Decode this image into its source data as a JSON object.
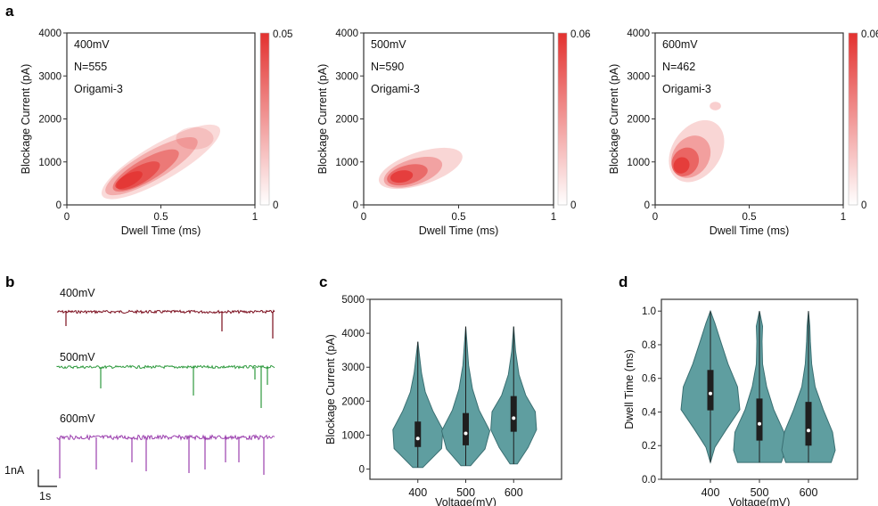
{
  "panel_labels": {
    "a": "a",
    "b": "b",
    "c": "c",
    "d": "d"
  },
  "chart_data": [
    {
      "type": "heatmap",
      "panel": "a",
      "voltage_label": "400mV",
      "voltage_color": "#a3102a",
      "n_label": "N=555",
      "sample_label": "Origami-3",
      "xlabel": "Dwell Time (ms)",
      "ylabel": "Blockage Current (pA)",
      "xlim": [
        0,
        1
      ],
      "ylim": [
        0,
        4000
      ],
      "xticks": [
        "0",
        "0.5",
        "1"
      ],
      "yticks": [
        "0",
        "1000",
        "2000",
        "3000",
        "4000"
      ],
      "colorbar": {
        "min_label": "0",
        "max_label": "0.05",
        "max": 0.05
      },
      "density_peak": {
        "dwell_ms": 0.38,
        "current_pA": 650
      }
    },
    {
      "type": "heatmap",
      "panel": "a",
      "voltage_label": "500mV",
      "voltage_color": "#2e9a3e",
      "n_label": "N=590",
      "sample_label": "Origami-3",
      "xlabel": "Dwell Time (ms)",
      "ylabel": "Blockage Current (pA)",
      "xlim": [
        0,
        1
      ],
      "ylim": [
        0,
        4000
      ],
      "xticks": [
        "0",
        "0.5",
        "1"
      ],
      "yticks": [
        "0",
        "1000",
        "2000",
        "3000",
        "4000"
      ],
      "colorbar": {
        "min_label": "0",
        "max_label": "0.06",
        "max": 0.06
      },
      "density_peak": {
        "dwell_ms": 0.2,
        "current_pA": 650
      }
    },
    {
      "type": "heatmap",
      "panel": "a",
      "voltage_label": "600mV",
      "voltage_color": "#9b3fae",
      "n_label": "N=462",
      "sample_label": "Origami-3",
      "xlabel": "Dwell Time (ms)",
      "ylabel": "Blockage Current (pA)",
      "xlim": [
        0,
        1
      ],
      "ylim": [
        0,
        4000
      ],
      "xticks": [
        "0",
        "0.5",
        "1"
      ],
      "yticks": [
        "0",
        "1000",
        "2000",
        "3000",
        "4000"
      ],
      "colorbar": {
        "min_label": "0",
        "max_label": "0.06",
        "max": 0.06
      },
      "density_peak": {
        "dwell_ms": 0.14,
        "current_pA": 950
      }
    },
    {
      "type": "line",
      "panel": "b",
      "series": [
        {
          "name": "400mV",
          "color": "#7a0c1c"
        },
        {
          "name": "500mV",
          "color": "#2e9a3e"
        },
        {
          "name": "600mV",
          "color": "#9b3fae"
        }
      ],
      "scale_bar": {
        "current": "1nA",
        "time": "1s"
      }
    },
    {
      "type": "violin",
      "panel": "c",
      "categories": [
        "400",
        "500",
        "600"
      ],
      "xlabel": "Voltage(mV)",
      "ylabel": "Blockage Current (pA)",
      "ylim": [
        -300,
        5000
      ],
      "yticks": [
        "0",
        "1000",
        "2000",
        "3000",
        "4000",
        "5000"
      ],
      "color": "#5f9ea0",
      "series": [
        {
          "category": "400",
          "min": 50,
          "q1": 650,
          "median": 900,
          "q3": 1400,
          "max": 3750
        },
        {
          "category": "500",
          "min": 100,
          "q1": 700,
          "median": 1050,
          "q3": 1650,
          "max": 4200
        },
        {
          "category": "600",
          "min": 150,
          "q1": 1100,
          "median": 1500,
          "q3": 2150,
          "max": 4200
        }
      ]
    },
    {
      "type": "violin",
      "panel": "d",
      "categories": [
        "400",
        "500",
        "600"
      ],
      "xlabel": "Voltage(mV)",
      "ylabel": "Dwell Time (ms)",
      "ylim": [
        0,
        1.07
      ],
      "yticks": [
        "0.0",
        "0.2",
        "0.4",
        "0.6",
        "0.8",
        "1.0"
      ],
      "color": "#5f9ea0",
      "series": [
        {
          "category": "400",
          "min": 0.1,
          "q1": 0.41,
          "median": 0.51,
          "q3": 0.65,
          "max": 1.0
        },
        {
          "category": "500",
          "min": 0.1,
          "q1": 0.23,
          "median": 0.33,
          "q3": 0.48,
          "max": 1.0
        },
        {
          "category": "600",
          "min": 0.1,
          "q1": 0.2,
          "median": 0.29,
          "q3": 0.46,
          "max": 1.0
        }
      ]
    }
  ]
}
